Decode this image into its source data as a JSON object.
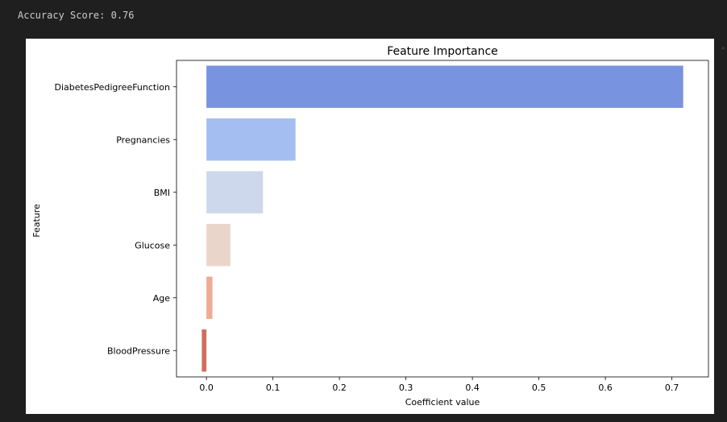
{
  "output": {
    "text": "Accuracy Score: 0.76"
  },
  "chart_data": {
    "type": "bar",
    "orientation": "horizontal",
    "title": "Feature Importance",
    "xlabel": "Coefficient value",
    "ylabel": "Feature",
    "categories": [
      "DiabetesPedigreeFunction",
      "Pregnancies",
      "BMI",
      "Glucose",
      "Age",
      "BloodPressure"
    ],
    "values": [
      0.717,
      0.134,
      0.085,
      0.036,
      0.009,
      -0.007
    ],
    "colors": [
      "#7893df",
      "#a5bef2",
      "#cdd8ec",
      "#ead5cb",
      "#eeab93",
      "#d06e5e"
    ],
    "xlim": [
      -0.045,
      0.755
    ],
    "xticks": [
      0.0,
      0.1,
      0.2,
      0.3,
      0.4,
      0.5,
      0.6,
      0.7
    ],
    "xtick_labels": [
      "0.0",
      "0.1",
      "0.2",
      "0.3",
      "0.4",
      "0.5",
      "0.6",
      "0.7"
    ],
    "grid": false
  }
}
